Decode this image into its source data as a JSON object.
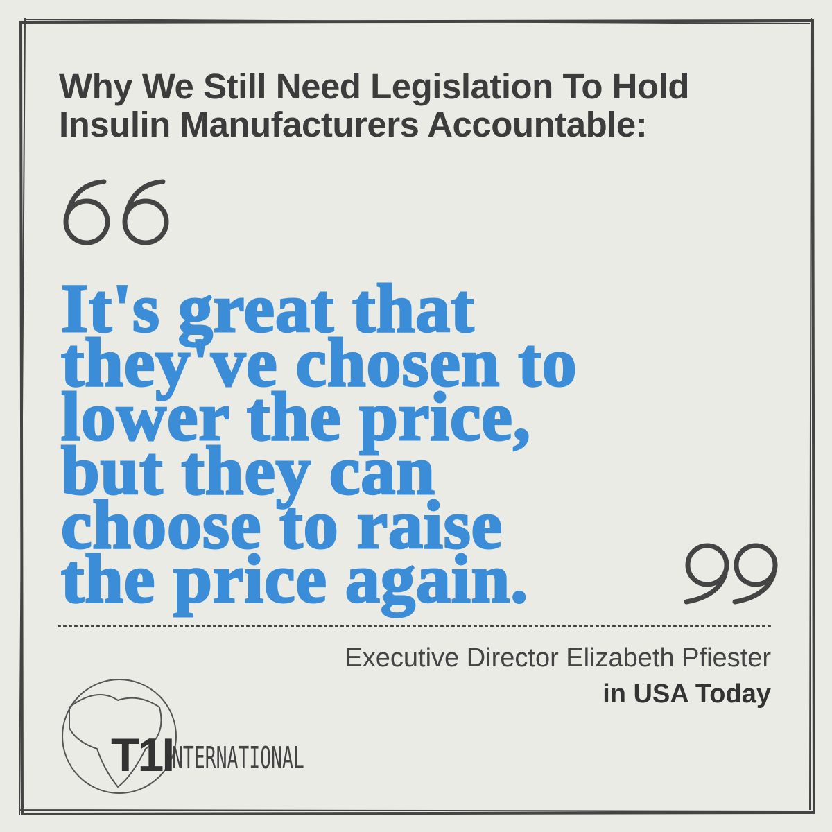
{
  "heading": {
    "lines": [
      "Why We Still Need Legislation To Hold",
      "Insulin Manufacturers Accountable:"
    ]
  },
  "quote": {
    "lines": [
      "It's great that",
      "they've chosen to",
      "lower the price,",
      "but they can",
      "choose to raise",
      "the price again."
    ]
  },
  "attribution": {
    "speaker": "Executive Director Elizabeth Pfiester",
    "source": "in USA Today"
  },
  "logo": {
    "mark": "T1I",
    "rest": "NTERNATIONAL"
  }
}
